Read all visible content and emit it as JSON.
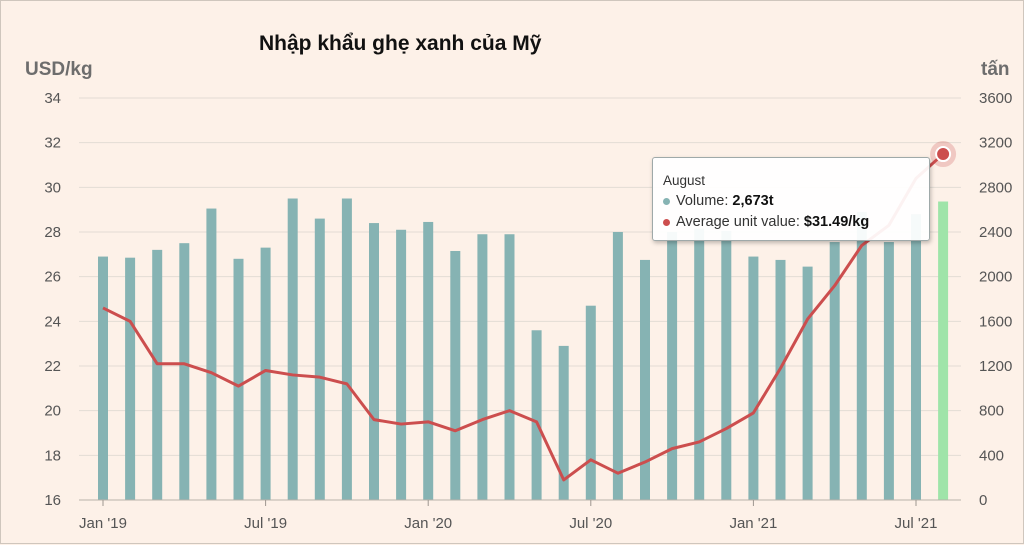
{
  "chart_data": {
    "type": "bar+line",
    "title": "Nhập khẩu ghẹ xanh của Mỹ",
    "y_left_label": "USD/kg",
    "y_right_label": "tấn",
    "y_left_range": [
      16,
      34
    ],
    "y_left_ticks": [
      "34",
      "32",
      "30",
      "28",
      "26",
      "24",
      "22",
      "20",
      "18",
      "16"
    ],
    "y_right_range": [
      0,
      3600
    ],
    "y_right_ticks": [
      "3600",
      "3200",
      "2800",
      "2400",
      "2000",
      "1600",
      "1200",
      "800",
      "400",
      "0"
    ],
    "x_ticks": [
      "Jan '19",
      "Jul '19",
      "Jan '20",
      "Jul '20",
      "Jan '21",
      "Jul '21"
    ],
    "grid": true,
    "colors": {
      "bars": "#86b3b3",
      "highlight_bar": "#9fe4a9",
      "line": "#cc4e4e"
    },
    "series": [
      {
        "name": "Volume",
        "axis": "right",
        "type": "bar",
        "values": [
          2180,
          2170,
          2240,
          2300,
          2610,
          2160,
          2260,
          2700,
          2520,
          2700,
          2480,
          2420,
          2490,
          2230,
          2380,
          2380,
          1520,
          1380,
          1740,
          2400,
          2150,
          2400,
          2430,
          2410,
          2180,
          2150,
          2090,
          2310,
          2580,
          2310,
          2560,
          2673
        ]
      },
      {
        "name": "Average unit value",
        "axis": "left",
        "type": "line",
        "values": [
          24.6,
          24.0,
          22.1,
          22.1,
          21.7,
          21.1,
          21.8,
          21.6,
          21.5,
          21.2,
          19.6,
          19.4,
          19.5,
          19.1,
          19.6,
          20.0,
          19.5,
          16.9,
          17.8,
          17.2,
          17.7,
          18.3,
          18.6,
          19.2,
          19.9,
          21.9,
          24.1,
          25.6,
          27.4,
          28.3,
          30.4,
          31.49
        ]
      }
    ],
    "highlight_index": 31
  },
  "tooltip": {
    "title": "August",
    "volume_label": "Volume: ",
    "volume_value": "2,673t",
    "value_label": "Average unit value: ",
    "value_value": "$31.49/kg"
  }
}
